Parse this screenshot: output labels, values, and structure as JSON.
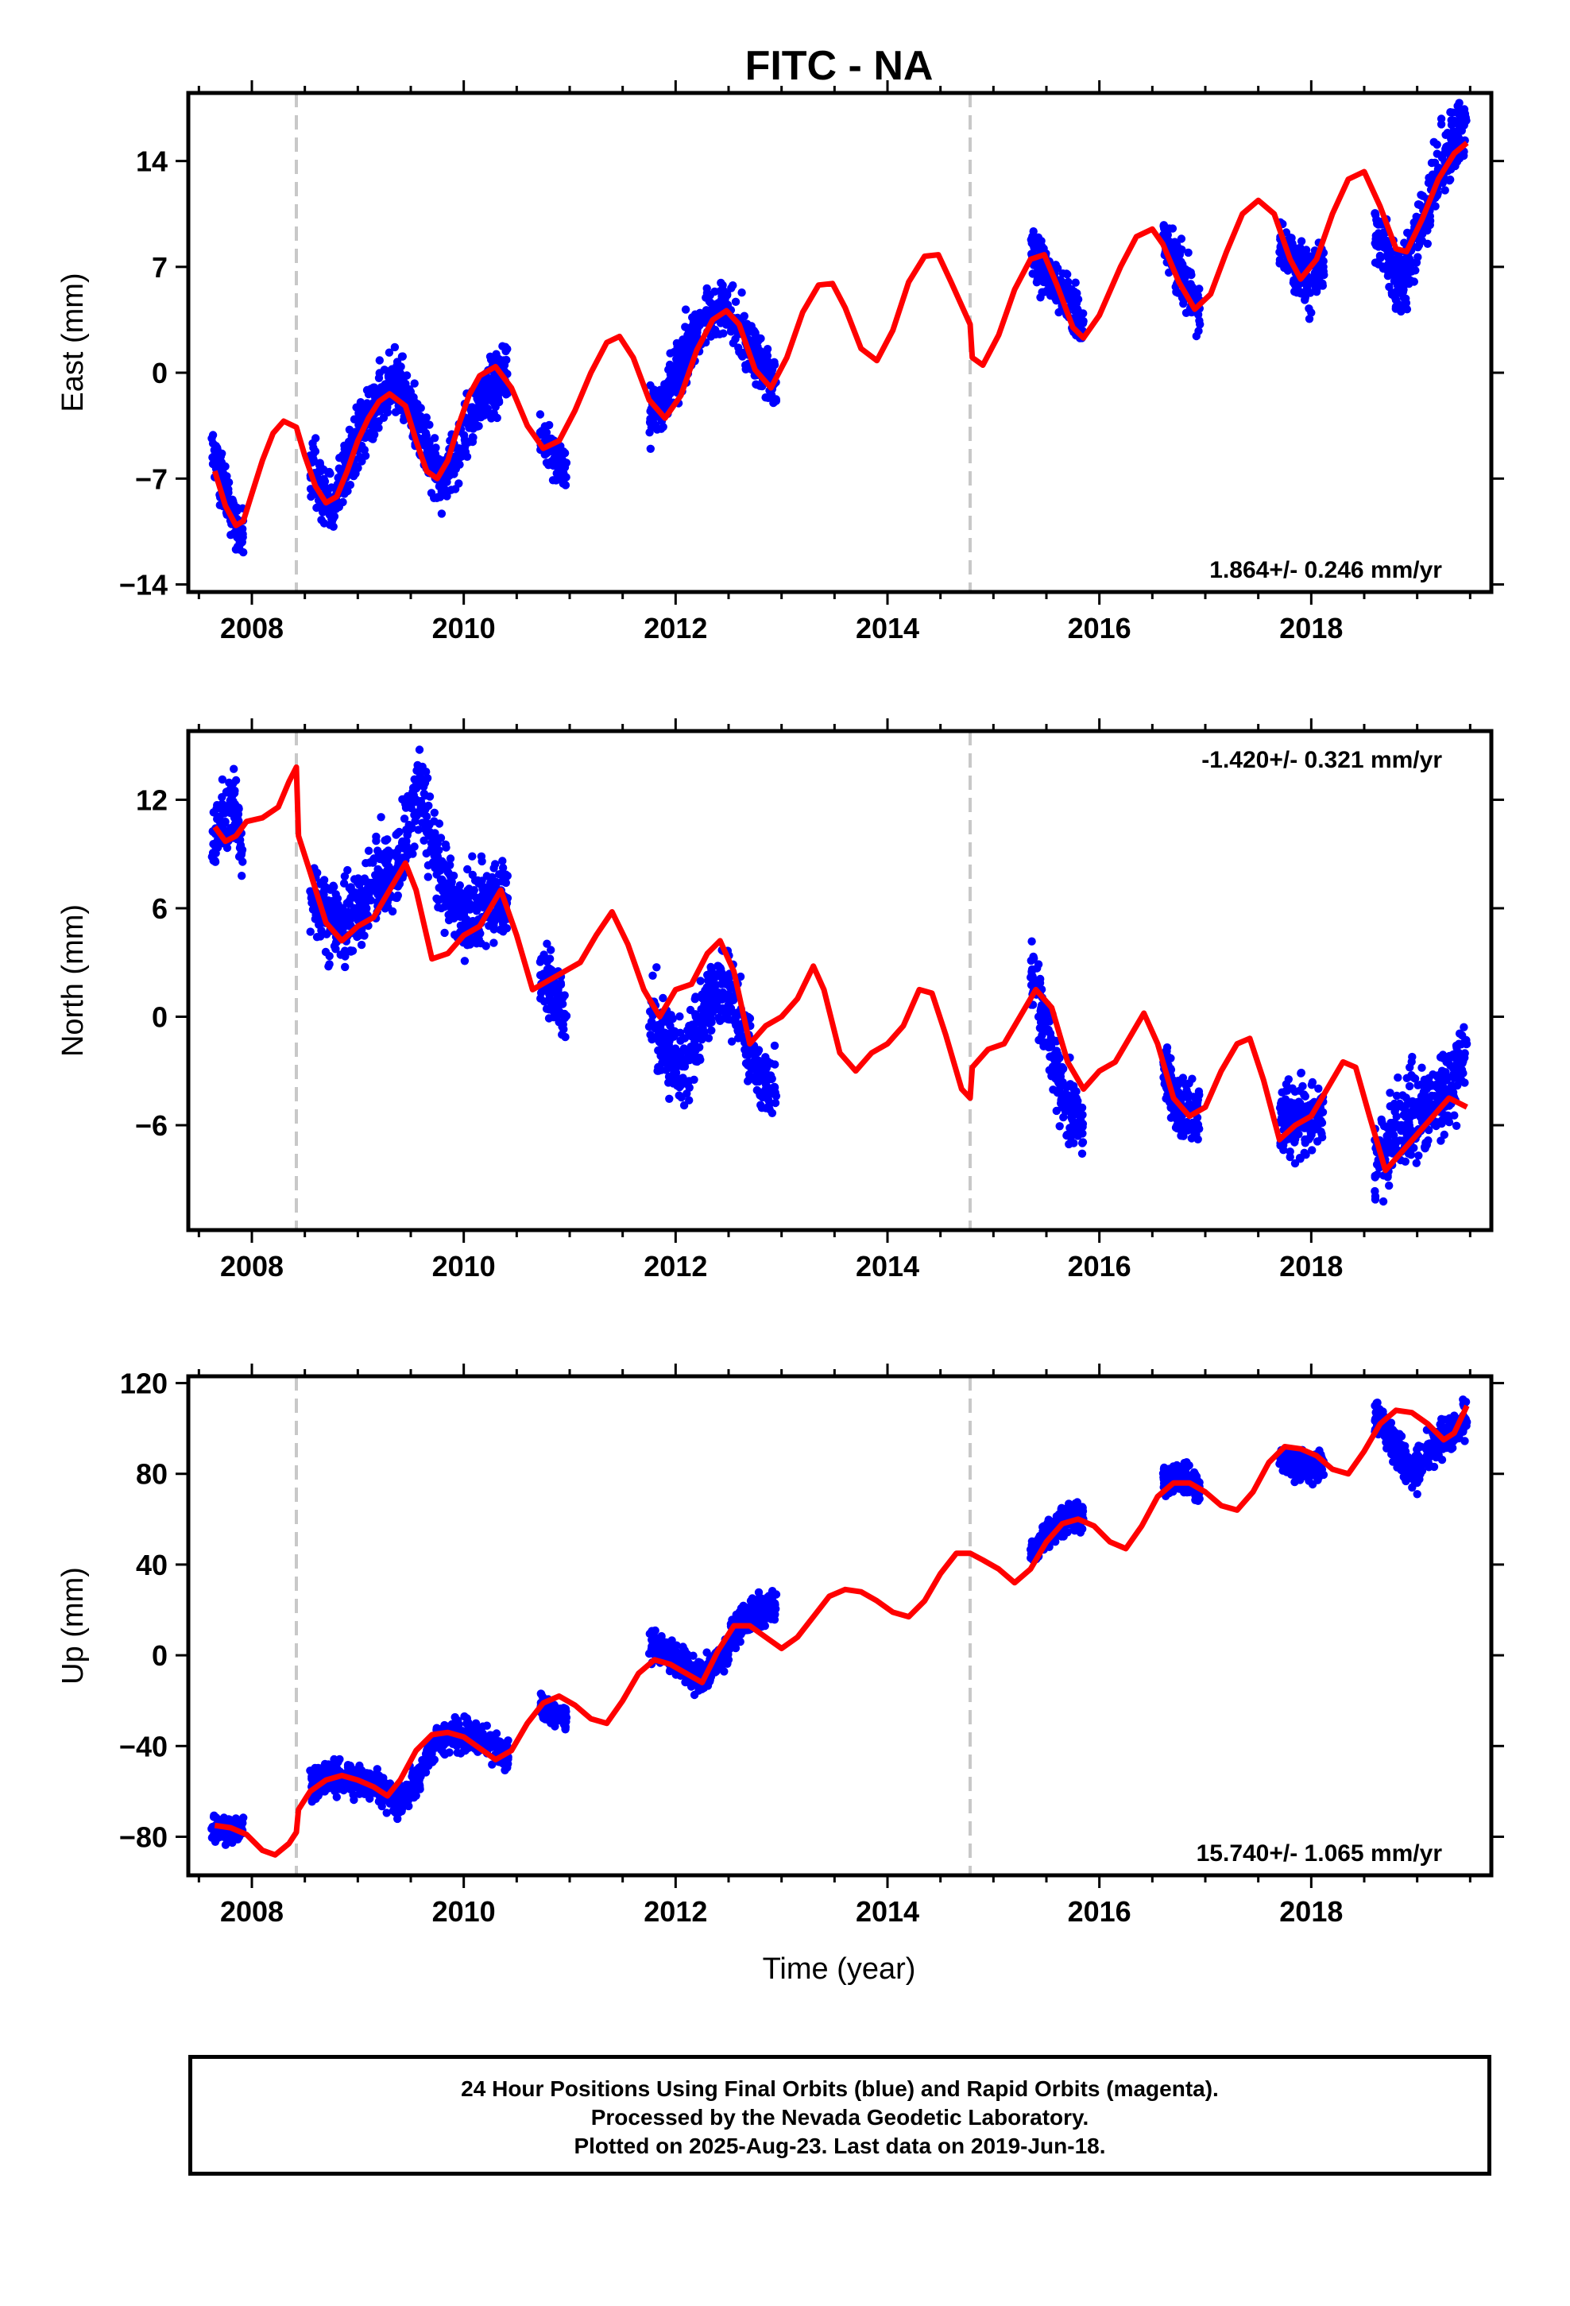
{
  "title": "FITC - NA",
  "xlabel": "Time (year)",
  "footer": {
    "line1": "24 Hour Positions Using Final Orbits (blue) and Rapid Orbits (magenta).",
    "line2": "Processed by the Nevada Geodetic Laboratory.",
    "line3": "Plotted on 2025-Aug-23. Last data on 2019-Jun-18."
  },
  "colors": {
    "points": "#0000ff",
    "model": "#ff0000",
    "event_line": "#c8c8c8",
    "frame": "#000000"
  },
  "chart_data": [
    {
      "type": "scatter",
      "component": "east",
      "ylabel": "East (mm)",
      "xlim": [
        2007.4,
        2019.7
      ],
      "ylim": [
        -14.5,
        18.5
      ],
      "xticks": [
        2008,
        2010,
        2012,
        2014,
        2016,
        2018
      ],
      "yticks": [
        -14,
        -7,
        0,
        7,
        14
      ],
      "rate_text": "1.864+/- 0.246 mm/yr",
      "rate_position": "bottom-right",
      "event_lines": [
        2008.42,
        2014.78
      ],
      "model": {
        "name": "model",
        "x": [
          2007.65,
          2007.75,
          2007.85,
          2007.92,
          2008.0,
          2008.1,
          2008.2,
          2008.3,
          2008.42,
          2008.5,
          2008.6,
          2008.7,
          2008.8,
          2008.9,
          2009.0,
          2009.1,
          2009.2,
          2009.3,
          2009.45,
          2009.55,
          2009.65,
          2009.75,
          2009.85,
          2009.95,
          2010.05,
          2010.15,
          2010.3,
          2010.45,
          2010.6,
          2010.75,
          2010.9,
          2011.05,
          2011.2,
          2011.35,
          2011.47,
          2011.6,
          2011.75,
          2011.9,
          2012.05,
          2012.2,
          2012.35,
          2012.48,
          2012.6,
          2012.75,
          2012.9,
          2013.05,
          2013.2,
          2013.35,
          2013.48,
          2013.6,
          2013.75,
          2013.9,
          2014.05,
          2014.2,
          2014.35,
          2014.48,
          2014.6,
          2014.78,
          2014.8,
          2014.9,
          2015.05,
          2015.2,
          2015.35,
          2015.48,
          2015.6,
          2015.75,
          2015.85,
          2016.0,
          2016.2,
          2016.35,
          2016.5,
          2016.6,
          2016.75,
          2016.9,
          2017.05,
          2017.2,
          2017.35,
          2017.5,
          2017.65,
          2017.8,
          2017.9,
          2018.05,
          2018.2,
          2018.35,
          2018.5,
          2018.65,
          2018.8,
          2018.9,
          2019.05,
          2019.2,
          2019.35,
          2019.47
        ],
        "y": [
          -6.5,
          -8.8,
          -10.1,
          -9.8,
          -8.0,
          -5.8,
          -4.0,
          -3.2,
          -3.6,
          -5.5,
          -7.5,
          -8.6,
          -8.2,
          -6.5,
          -4.5,
          -3.0,
          -1.9,
          -1.4,
          -2.2,
          -4.5,
          -6.5,
          -7.0,
          -5.8,
          -3.5,
          -1.5,
          -0.2,
          0.4,
          -1.0,
          -3.5,
          -5.0,
          -4.5,
          -2.5,
          0.0,
          2.0,
          2.4,
          1.0,
          -1.8,
          -3.0,
          -1.5,
          1.5,
          3.5,
          4.1,
          3.2,
          0.2,
          -1.0,
          1.0,
          4.0,
          5.8,
          5.9,
          4.3,
          1.6,
          0.8,
          2.8,
          6.0,
          7.7,
          7.8,
          6.0,
          3.2,
          1.0,
          0.5,
          2.5,
          5.5,
          7.5,
          7.8,
          5.8,
          3.0,
          2.3,
          3.8,
          7.0,
          9.0,
          9.5,
          8.5,
          6.0,
          4.2,
          5.2,
          8.0,
          10.5,
          11.4,
          10.5,
          7.5,
          6.2,
          7.5,
          10.5,
          12.8,
          13.3,
          11.0,
          8.2,
          8.0,
          10.2,
          12.8,
          14.5,
          15.2
        ]
      },
      "clusters": [
        {
          "x0": 2007.62,
          "x1": 2007.92,
          "y": [
            -5.0,
            -8.5,
            -11.0
          ],
          "spread": 1.2
        },
        {
          "x0": 2008.55,
          "x1": 2010.42,
          "y": [
            -6.0,
            -9.0,
            -5.0,
            -2.0,
            -0.5,
            -4.0,
            -7.5,
            -4.0,
            -1.0,
            0.0
          ],
          "spread": 1.4
        },
        {
          "x0": 2010.72,
          "x1": 2010.97,
          "y": [
            -4.0,
            -5.5,
            -6.5
          ],
          "spread": 1.0
        },
        {
          "x0": 2011.75,
          "x1": 2012.95,
          "y": [
            -3.0,
            -1.5,
            1.5,
            3.5,
            4.5,
            3.0,
            1.0,
            -1.0
          ],
          "spread": 1.3
        },
        {
          "x0": 2015.35,
          "x1": 2015.85,
          "y": [
            8.0,
            6.5,
            5.0,
            3.0
          ],
          "spread": 1.2
        },
        {
          "x0": 2016.6,
          "x1": 2016.95,
          "y": [
            9.0,
            6.5,
            4.0
          ],
          "spread": 1.2
        },
        {
          "x0": 2017.7,
          "x1": 2018.12,
          "y": [
            9.0,
            7.0,
            6.0,
            7.5
          ],
          "spread": 1.4
        },
        {
          "x0": 2018.6,
          "x1": 2019.47,
          "y": [
            9.5,
            7.5,
            6.0,
            8.5,
            11.0,
            13.5,
            15.5,
            16.5
          ],
          "spread": 1.6
        }
      ]
    },
    {
      "type": "scatter",
      "component": "north",
      "ylabel": "North (mm)",
      "xlim": [
        2007.4,
        2019.7
      ],
      "ylim": [
        -11.8,
        15.8
      ],
      "xticks": [
        2008,
        2010,
        2012,
        2014,
        2016,
        2018
      ],
      "yticks": [
        -6,
        0,
        6,
        12
      ],
      "rate_text": "-1.420+/- 0.321 mm/yr",
      "rate_position": "top-right",
      "event_lines": [
        2008.42,
        2014.78
      ],
      "model": {
        "name": "model",
        "x": [
          2007.65,
          2007.75,
          2007.85,
          2007.95,
          2008.1,
          2008.25,
          2008.35,
          2008.42,
          2008.44,
          2008.55,
          2008.7,
          2008.85,
          2009.0,
          2009.15,
          2009.3,
          2009.45,
          2009.55,
          2009.7,
          2009.85,
          2010.0,
          2010.15,
          2010.35,
          2010.5,
          2010.65,
          2010.8,
          2010.95,
          2011.1,
          2011.25,
          2011.4,
          2011.55,
          2011.7,
          2011.85,
          2012.0,
          2012.15,
          2012.3,
          2012.42,
          2012.55,
          2012.7,
          2012.85,
          2013.0,
          2013.15,
          2013.3,
          2013.4,
          2013.55,
          2013.7,
          2013.85,
          2014.0,
          2014.15,
          2014.3,
          2014.42,
          2014.55,
          2014.7,
          2014.78,
          2014.8,
          2014.95,
          2015.1,
          2015.25,
          2015.4,
          2015.55,
          2015.7,
          2015.85,
          2016.0,
          2016.15,
          2016.3,
          2016.42,
          2016.55,
          2016.7,
          2016.85,
          2017.0,
          2017.15,
          2017.3,
          2017.42,
          2017.55,
          2017.7,
          2017.85,
          2018.0,
          2018.15,
          2018.3,
          2018.42,
          2018.55,
          2018.7,
          2018.85,
          2019.0,
          2019.15,
          2019.3,
          2019.47
        ],
        "y": [
          10.5,
          9.7,
          10.0,
          10.8,
          11.0,
          11.6,
          13.0,
          13.8,
          10.0,
          8.0,
          5.2,
          4.2,
          5.0,
          5.5,
          7.0,
          8.5,
          7.0,
          3.2,
          3.5,
          4.5,
          5.0,
          7.0,
          4.5,
          1.5,
          2.0,
          2.5,
          3.0,
          4.5,
          5.8,
          4.0,
          1.5,
          0.0,
          1.5,
          1.8,
          3.5,
          4.2,
          2.5,
          -1.5,
          -0.5,
          0.0,
          1.0,
          2.8,
          1.5,
          -2.0,
          -3.0,
          -2.0,
          -1.5,
          -0.5,
          1.5,
          1.3,
          -1.0,
          -4.0,
          -4.5,
          -2.8,
          -1.8,
          -1.5,
          0.0,
          1.5,
          0.5,
          -2.5,
          -4.0,
          -3.0,
          -2.5,
          -1.0,
          0.2,
          -1.5,
          -4.5,
          -5.5,
          -5.0,
          -3.0,
          -1.5,
          -1.2,
          -3.5,
          -6.8,
          -6.0,
          -5.5,
          -4.0,
          -2.5,
          -2.8,
          -5.5,
          -8.5,
          -7.5,
          -6.5,
          -5.5,
          -4.5,
          -5.0
        ]
      },
      "clusters": [
        {
          "x0": 2007.62,
          "x1": 2007.92,
          "y": [
            9.5,
            11.0,
            12.0,
            9.0
          ],
          "spread": 1.4
        },
        {
          "x0": 2008.55,
          "x1": 2010.42,
          "y": [
            7.0,
            5.0,
            5.5,
            7.5,
            8.5,
            12.5,
            7.5,
            5.5,
            6.5,
            6.5
          ],
          "spread": 1.6
        },
        {
          "x0": 2010.72,
          "x1": 2010.97,
          "y": [
            2.5,
            1.5,
            0.0
          ],
          "spread": 1.2
        },
        {
          "x0": 2011.75,
          "x1": 2012.95,
          "y": [
            0.5,
            -1.5,
            -3.0,
            0.5,
            2.0,
            0.0,
            -3.5,
            -4.0
          ],
          "spread": 1.5
        },
        {
          "x0": 2015.35,
          "x1": 2015.85,
          "y": [
            2.0,
            -1.0,
            -5.0,
            -6.0
          ],
          "spread": 1.4
        },
        {
          "x0": 2016.6,
          "x1": 2016.95,
          "y": [
            -3.0,
            -5.0,
            -5.5
          ],
          "spread": 1.3
        },
        {
          "x0": 2017.7,
          "x1": 2018.12,
          "y": [
            -6.0,
            -5.5,
            -5.5,
            -5.8
          ],
          "spread": 1.5
        },
        {
          "x0": 2018.6,
          "x1": 2019.47,
          "y": [
            -8.0,
            -7.0,
            -6.0,
            -5.5,
            -5.0,
            -4.0,
            -3.5,
            -2.0
          ],
          "spread": 1.7
        }
      ]
    },
    {
      "type": "scatter",
      "component": "up",
      "ylabel": "Up (mm)",
      "xlim": [
        2007.4,
        2019.7
      ],
      "ylim": [
        -97,
        123
      ],
      "xticks": [
        2008,
        2010,
        2012,
        2014,
        2016,
        2018
      ],
      "yticks": [
        -80,
        -40,
        0,
        40,
        80,
        120
      ],
      "rate_text": "15.740+/- 1.065 mm/yr",
      "rate_position": "bottom-right",
      "event_lines": [
        2008.42,
        2014.78
      ],
      "model": {
        "name": "model",
        "x": [
          2007.65,
          2007.8,
          2007.95,
          2008.1,
          2008.22,
          2008.35,
          2008.42,
          2008.44,
          2008.55,
          2008.7,
          2008.85,
          2009.0,
          2009.15,
          2009.28,
          2009.4,
          2009.55,
          2009.7,
          2009.85,
          2010.0,
          2010.15,
          2010.3,
          2010.45,
          2010.6,
          2010.75,
          2010.9,
          2011.05,
          2011.2,
          2011.35,
          2011.5,
          2011.65,
          2011.8,
          2011.95,
          2012.1,
          2012.25,
          2012.4,
          2012.55,
          2012.7,
          2012.85,
          2013.0,
          2013.15,
          2013.3,
          2013.45,
          2013.6,
          2013.75,
          2013.9,
          2014.05,
          2014.2,
          2014.35,
          2014.5,
          2014.65,
          2014.78,
          2014.9,
          2015.05,
          2015.2,
          2015.35,
          2015.5,
          2015.65,
          2015.8,
          2015.95,
          2016.1,
          2016.25,
          2016.4,
          2016.55,
          2016.7,
          2016.85,
          2017.0,
          2017.15,
          2017.3,
          2017.45,
          2017.6,
          2017.75,
          2017.9,
          2018.05,
          2018.2,
          2018.35,
          2018.5,
          2018.65,
          2018.8,
          2018.95,
          2019.1,
          2019.25,
          2019.35,
          2019.47
        ],
        "y": [
          -75,
          -76,
          -79,
          -86,
          -88,
          -83,
          -78,
          -68,
          -60,
          -55,
          -53,
          -55,
          -58,
          -62,
          -55,
          -42,
          -35,
          -34,
          -36,
          -41,
          -46,
          -42,
          -30,
          -21,
          -18,
          -22,
          -28,
          -30,
          -20,
          -8,
          -2,
          -4,
          -8,
          -12,
          2,
          13,
          13,
          8,
          3,
          8,
          17,
          26,
          29,
          28,
          24,
          19,
          17,
          24,
          36,
          45,
          45,
          42,
          38,
          32,
          38,
          50,
          58,
          60,
          57,
          50,
          47,
          57,
          70,
          76,
          76,
          72,
          66,
          64,
          72,
          85,
          92,
          91,
          88,
          82,
          80,
          90,
          102,
          108,
          107,
          102,
          95,
          98,
          110
        ]
      },
      "clusters": [
        {
          "x0": 2007.62,
          "x1": 2007.92,
          "y": [
            -75,
            -78,
            -76
          ],
          "spread": 4
        },
        {
          "x0": 2008.55,
          "x1": 2010.42,
          "y": [
            -57,
            -53,
            -55,
            -57,
            -65,
            -52,
            -36,
            -35,
            -38,
            -45
          ],
          "spread": 5
        },
        {
          "x0": 2010.72,
          "x1": 2010.97,
          "y": [
            -22,
            -26,
            -28
          ],
          "spread": 4
        },
        {
          "x0": 2011.75,
          "x1": 2012.95,
          "y": [
            5,
            0,
            -5,
            -10,
            0,
            15,
            20,
            22
          ],
          "spread": 5
        },
        {
          "x0": 2015.35,
          "x1": 2015.85,
          "y": [
            45,
            55,
            60,
            62
          ],
          "spread": 5
        },
        {
          "x0": 2016.6,
          "x1": 2016.95,
          "y": [
            75,
            80,
            72
          ],
          "spread": 5
        },
        {
          "x0": 2017.7,
          "x1": 2018.12,
          "y": [
            88,
            85,
            82,
            86
          ],
          "spread": 5
        },
        {
          "x0": 2018.6,
          "x1": 2019.47,
          "y": [
            105,
            98,
            88,
            80,
            90,
            95,
            100,
            105
          ],
          "spread": 6
        }
      ]
    }
  ]
}
